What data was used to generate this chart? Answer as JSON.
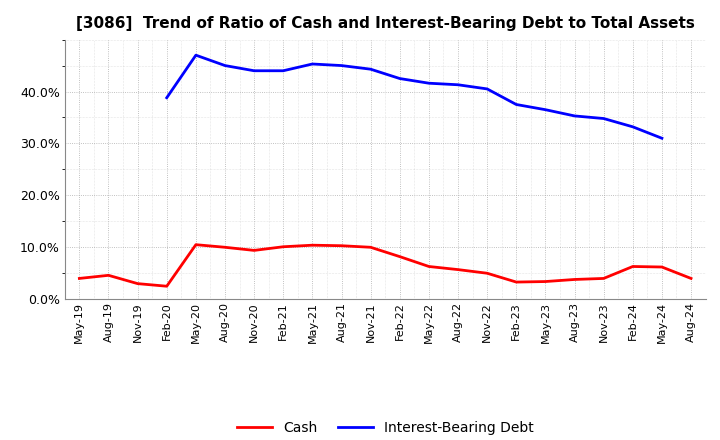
{
  "title": "[3086]  Trend of Ratio of Cash and Interest-Bearing Debt to Total Assets",
  "x_labels": [
    "May-19",
    "Aug-19",
    "Nov-19",
    "Feb-20",
    "May-20",
    "Aug-20",
    "Nov-20",
    "Feb-21",
    "May-21",
    "Aug-21",
    "Nov-21",
    "Feb-22",
    "May-22",
    "Aug-22",
    "Nov-22",
    "Feb-23",
    "May-23",
    "Aug-23",
    "Nov-23",
    "Feb-24",
    "May-24",
    "Aug-24"
  ],
  "cash": [
    0.04,
    0.046,
    0.03,
    0.025,
    0.105,
    0.1,
    0.094,
    0.101,
    0.104,
    0.103,
    0.1,
    0.082,
    0.063,
    0.057,
    0.05,
    0.033,
    0.034,
    0.038,
    0.04,
    0.063,
    0.062,
    0.04
  ],
  "debt": [
    null,
    null,
    null,
    0.388,
    0.47,
    0.45,
    0.44,
    0.44,
    0.453,
    0.45,
    0.443,
    0.425,
    0.416,
    0.413,
    0.405,
    0.375,
    0.365,
    0.353,
    0.348,
    0.332,
    0.31,
    null
  ],
  "cash_color": "#ff0000",
  "debt_color": "#0000ff",
  "ylim": [
    0.0,
    0.5
  ],
  "yticks": [
    0.0,
    0.1,
    0.2,
    0.3,
    0.4
  ],
  "background_color": "#ffffff",
  "grid_color": "#999999",
  "title_fontsize": 11,
  "tick_fontsize": 8,
  "legend_fontsize": 10,
  "linewidth": 2.0
}
